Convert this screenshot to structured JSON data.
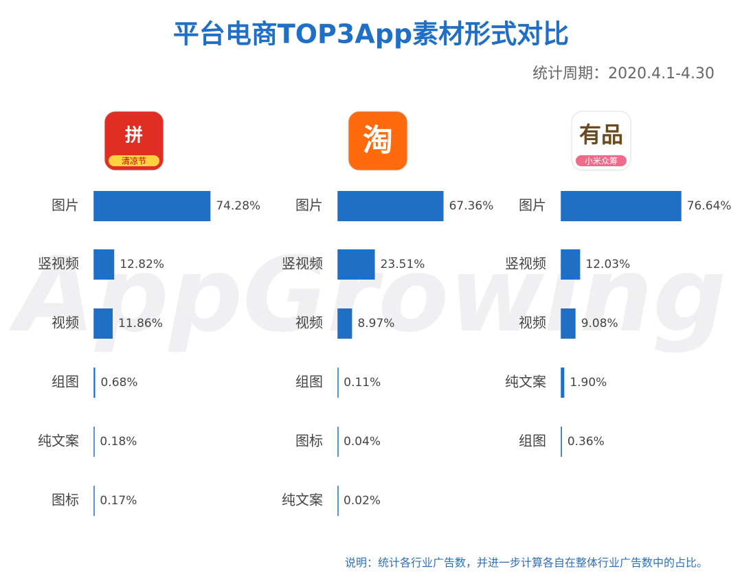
{
  "title": "平台电商TOP3App素材形式对比",
  "subtitle": "统计周期：2020.4.1-4.30",
  "note": "说明：统计各行业广告数，并进一步计算各自在整体行业广告数中的占比。",
  "watermark": "AppGrowing",
  "chart_data": [
    {
      "type": "bar",
      "orientation": "horizontal",
      "logo_text": [
        "拼",
        "清凉节"
      ],
      "logo_color": "#e02e24",
      "categories": [
        "图片",
        "竖视频",
        "视频",
        "组图",
        "纯文案",
        "图标"
      ],
      "values": [
        74.28,
        12.82,
        11.86,
        0.68,
        0.18,
        0.17
      ],
      "value_labels": [
        "74.28%",
        "12.82%",
        "11.86%",
        "0.68%",
        "0.18%",
        "0.17%"
      ],
      "color": "#1f6fc6",
      "xlim": [
        0,
        100
      ]
    },
    {
      "type": "bar",
      "orientation": "horizontal",
      "logo_text": [
        "淘"
      ],
      "logo_color": "#ff6a0d",
      "categories": [
        "图片",
        "竖视频",
        "视频",
        "组图",
        "图标",
        "纯文案"
      ],
      "values": [
        67.36,
        23.51,
        8.97,
        0.11,
        0.04,
        0.02
      ],
      "value_labels": [
        "67.36%",
        "23.51%",
        "8.97%",
        "0.11%",
        "0.04%",
        "0.02%"
      ],
      "color": "#1f6fc6",
      "xlim": [
        0,
        100
      ]
    },
    {
      "type": "bar",
      "orientation": "horizontal",
      "logo_text": [
        "有品",
        "小米众筹"
      ],
      "logo_color": "#ffffff",
      "categories": [
        "图片",
        "竖视频",
        "视频",
        "纯文案",
        "组图"
      ],
      "values": [
        76.64,
        12.03,
        9.08,
        1.9,
        0.36
      ],
      "value_labels": [
        "76.64%",
        "12.03%",
        "9.08%",
        "1.90%",
        "0.36%"
      ],
      "color": "#1f6fc6",
      "xlim": [
        0,
        100
      ]
    }
  ]
}
